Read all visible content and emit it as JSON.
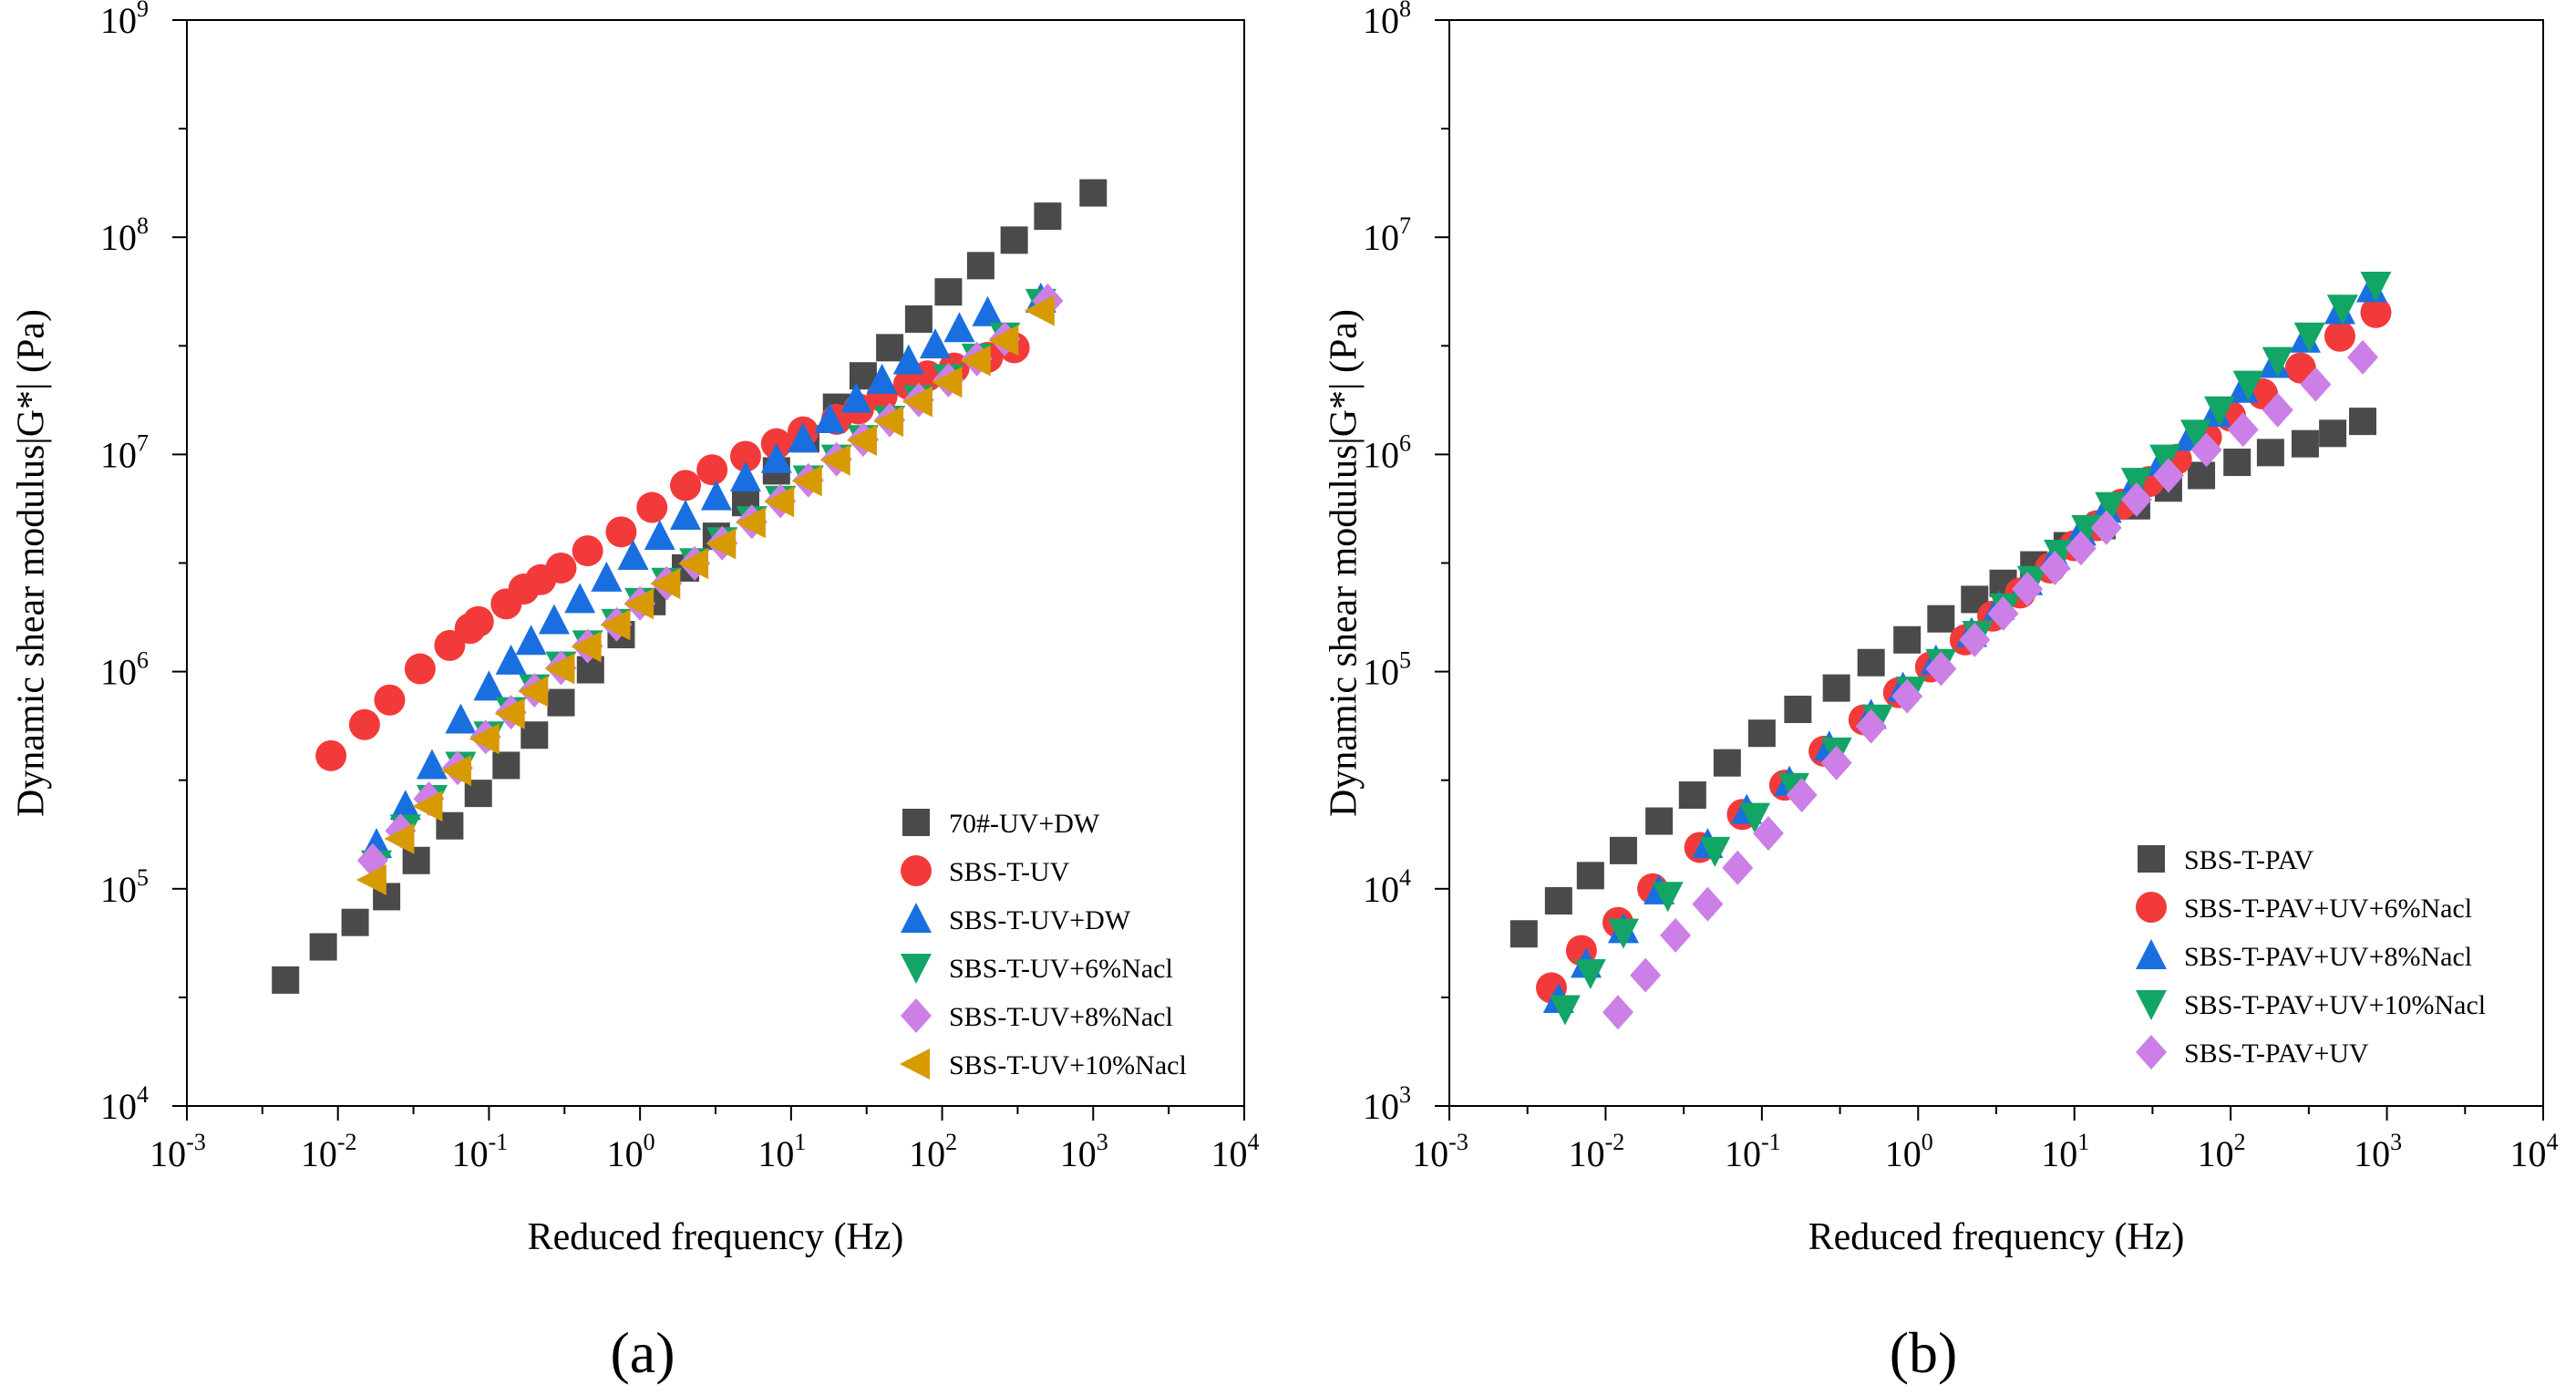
{
  "figure": {
    "colors": {
      "gray": "#4a4a4a",
      "red": "#f23a3a",
      "blue": "#1a6fe0",
      "green": "#12a566",
      "violet": "#cc7fe6",
      "gold": "#d79a00"
    }
  },
  "chart_data": [
    {
      "panel_label": "(a)",
      "type": "scatter",
      "xlabel": "Reduced frequency (Hz)",
      "ylabel": "Dynamic shear modulus|G*| (Pa)",
      "xscale": "log",
      "yscale": "log",
      "xlim": [
        0.001,
        10000
      ],
      "ylim": [
        10000,
        1000000000
      ],
      "x_ticks": [
        {
          "base": "10",
          "exp": "-3"
        },
        {
          "base": "10",
          "exp": "-2"
        },
        {
          "base": "10",
          "exp": "-1"
        },
        {
          "base": "10",
          "exp": "0"
        },
        {
          "base": "10",
          "exp": "1"
        },
        {
          "base": "10",
          "exp": "2"
        },
        {
          "base": "10",
          "exp": "3"
        },
        {
          "base": "10",
          "exp": "4"
        }
      ],
      "y_ticks": [
        {
          "base": "10",
          "exp": "4"
        },
        {
          "base": "10",
          "exp": "5"
        },
        {
          "base": "10",
          "exp": "6"
        },
        {
          "base": "10",
          "exp": "7"
        },
        {
          "base": "10",
          "exp": "8"
        },
        {
          "base": "10",
          "exp": "9"
        }
      ],
      "legend_position": "bottom-right",
      "series": [
        {
          "name": "70#-UV+DW",
          "marker": "square",
          "color": "#4a4a4a",
          "x": [
            0.0045,
            0.008,
            0.013,
            0.021,
            0.033,
            0.055,
            0.085,
            0.13,
            0.2,
            0.3,
            0.47,
            0.75,
            1.2,
            2,
            3.2,
            5,
            8,
            12.5,
            20,
            30,
            45,
            70,
            110,
            180,
            300,
            500,
            1000
          ],
          "y": [
            38000,
            54000,
            70000,
            92000,
            135000,
            195000,
            275000,
            370000,
            510000,
            720000,
            1020000,
            1480000,
            2100000,
            3000000,
            4200000,
            6000000,
            8400000,
            11800000,
            16500000,
            23000000,
            31000000,
            42000000,
            56000000,
            74000000,
            97000000,
            125000000,
            160000000
          ]
        },
        {
          "name": "SBS-T-UV",
          "marker": "circle",
          "color": "#f23a3a",
          "x": [
            0.009,
            0.015,
            0.022,
            0.035,
            0.055,
            0.075,
            0.085,
            0.13,
            0.17,
            0.22,
            0.3,
            0.45,
            0.75,
            1.2,
            2,
            3,
            5,
            8,
            12,
            20,
            28,
            40,
            60,
            80,
            120,
            200,
            300
          ],
          "y": [
            410000,
            570000,
            740000,
            1030000,
            1320000,
            1580000,
            1700000,
            2050000,
            2400000,
            2650000,
            3000000,
            3600000,
            4400000,
            5700000,
            7200000,
            8500000,
            9800000,
            11200000,
            12700000,
            14500000,
            16200000,
            18500000,
            21000000,
            23000000,
            25000000,
            28000000,
            31000000
          ]
        },
        {
          "name": "SBS-T-UV+DW",
          "marker": "triangle-up",
          "color": "#1a6fe0",
          "x": [
            0.018,
            0.028,
            0.042,
            0.065,
            0.1,
            0.14,
            0.19,
            0.27,
            0.4,
            0.6,
            0.9,
            1.35,
            2,
            3.2,
            5,
            8,
            12,
            18,
            27,
            40,
            60,
            90,
            130,
            200,
            450
          ],
          "y": [
            160000,
            240000,
            370000,
            600000,
            850000,
            1120000,
            1380000,
            1720000,
            2150000,
            2700000,
            3400000,
            4200000,
            5200000,
            6400000,
            7800000,
            9500000,
            11800000,
            14500000,
            18000000,
            22000000,
            27000000,
            32000000,
            38000000,
            45000000,
            52000000
          ]
        },
        {
          "name": "SBS-T-UV+6%Nacl",
          "marker": "triangle-down",
          "color": "#12a566",
          "x": [
            0.018,
            0.028,
            0.042,
            0.065,
            0.1,
            0.14,
            0.2,
            0.3,
            0.45,
            0.7,
            1,
            1.5,
            2.3,
            3.5,
            5.5,
            8.5,
            13,
            20,
            30,
            45,
            70,
            110,
            170,
            260,
            450
          ],
          "y": [
            130000,
            190000,
            260000,
            370000,
            510000,
            660000,
            840000,
            1070000,
            1340000,
            1680000,
            2100000,
            2600000,
            3200000,
            4000000,
            5000000,
            6200000,
            7700000,
            9600000,
            11800000,
            14500000,
            18000000,
            22500000,
            28000000,
            35000000,
            50000000
          ]
        },
        {
          "name": "SBS-T-UV+8%Nacl",
          "marker": "diamond",
          "color": "#cc7fe6",
          "x": [
            0.017,
            0.026,
            0.04,
            0.062,
            0.095,
            0.14,
            0.2,
            0.3,
            0.45,
            0.7,
            1,
            1.5,
            2.3,
            3.5,
            5.5,
            8.5,
            13,
            20,
            30,
            45,
            70,
            110,
            170,
            260,
            500
          ],
          "y": [
            135000,
            185000,
            260000,
            360000,
            500000,
            650000,
            820000,
            1040000,
            1310000,
            1650000,
            2060000,
            2550000,
            3150000,
            3900000,
            4900000,
            6100000,
            7600000,
            9500000,
            11700000,
            14400000,
            17800000,
            22000000,
            27500000,
            34000000,
            51000000
          ]
        },
        {
          "name": "SBS-T-UV+10%Nacl",
          "marker": "triangle-left",
          "color": "#d79a00",
          "x": [
            0.017,
            0.026,
            0.04,
            0.062,
            0.095,
            0.14,
            0.2,
            0.3,
            0.45,
            0.7,
            1,
            1.5,
            2.3,
            3.5,
            5.5,
            8.5,
            13,
            20,
            30,
            45,
            70,
            110,
            170,
            260,
            450
          ],
          "y": [
            110000,
            170000,
            240000,
            350000,
            490000,
            640000,
            810000,
            1030000,
            1300000,
            1640000,
            2050000,
            2540000,
            3140000,
            3880000,
            4850000,
            6050000,
            7550000,
            9400000,
            11600000,
            14200000,
            17500000,
            21500000,
            27000000,
            33500000,
            46000000
          ]
        }
      ]
    },
    {
      "panel_label": "(b)",
      "type": "scatter",
      "xlabel": "Reduced frequency (Hz)",
      "ylabel": "Dynamic shear modulus|G*| (Pa)",
      "xscale": "log",
      "yscale": "log",
      "xlim": [
        0.001,
        10000
      ],
      "ylim": [
        1000,
        100000000
      ],
      "x_ticks": [
        {
          "base": "10",
          "exp": "-3"
        },
        {
          "base": "10",
          "exp": "-2"
        },
        {
          "base": "10",
          "exp": "-1"
        },
        {
          "base": "10",
          "exp": "0"
        },
        {
          "base": "10",
          "exp": "1"
        },
        {
          "base": "10",
          "exp": "2"
        },
        {
          "base": "10",
          "exp": "3"
        },
        {
          "base": "10",
          "exp": "4"
        }
      ],
      "y_ticks": [
        {
          "base": "10",
          "exp": "3"
        },
        {
          "base": "10",
          "exp": "4"
        },
        {
          "base": "10",
          "exp": "5"
        },
        {
          "base": "10",
          "exp": "6"
        },
        {
          "base": "10",
          "exp": "7"
        },
        {
          "base": "10",
          "exp": "8"
        }
      ],
      "legend_position": "bottom-right",
      "series": [
        {
          "name": "SBS-T-PAV",
          "marker": "square",
          "color": "#4a4a4a",
          "x": [
            0.003,
            0.005,
            0.008,
            0.013,
            0.022,
            0.036,
            0.06,
            0.1,
            0.17,
            0.3,
            0.5,
            0.85,
            1.4,
            2.3,
            3.5,
            5.5,
            9,
            15,
            25,
            40,
            65,
            110,
            180,
            300,
            450,
            700
          ],
          "y": [
            6200,
            8800,
            11500,
            15000,
            20500,
            27000,
            38000,
            52000,
            67000,
            84000,
            110000,
            140000,
            175000,
            215000,
            255000,
            310000,
            380000,
            470000,
            580000,
            700000,
            800000,
            920000,
            1020000,
            1120000,
            1250000,
            1420000
          ]
        },
        {
          "name": "SBS-T-PAV+UV+6%Nacl",
          "marker": "circle",
          "color": "#f23a3a",
          "x": [
            0.0045,
            0.007,
            0.012,
            0.02,
            0.04,
            0.075,
            0.14,
            0.25,
            0.45,
            0.75,
            1.2,
            2,
            3,
            4.5,
            7,
            10,
            14,
            20,
            30,
            45,
            70,
            100,
            160,
            280,
            500,
            850
          ],
          "y": [
            3500,
            5200,
            7000,
            10000,
            15500,
            22000,
            30000,
            43000,
            60000,
            80000,
            105000,
            140000,
            180000,
            230000,
            300000,
            380000,
            470000,
            590000,
            750000,
            950000,
            1200000,
            1500000,
            1900000,
            2500000,
            3500000,
            4500000
          ]
        },
        {
          "name": "SBS-T-PAV+UV+8%Nacl",
          "marker": "triangle-up",
          "color": "#1a6fe0",
          "x": [
            0.005,
            0.0075,
            0.013,
            0.022,
            0.045,
            0.08,
            0.15,
            0.27,
            0.5,
            0.8,
            1.3,
            2.2,
            3.3,
            5,
            7.5,
            11,
            16,
            24,
            36,
            55,
            80,
            120,
            190,
            300,
            500,
            800
          ],
          "y": [
            3100,
            4500,
            6500,
            9800,
            16000,
            23000,
            31000,
            45000,
            63000,
            84000,
            112000,
            150000,
            200000,
            260000,
            340000,
            440000,
            560000,
            720000,
            920000,
            1200000,
            1550000,
            2000000,
            2600000,
            3400000,
            4600000,
            5800000
          ]
        },
        {
          "name": "SBS-T-PAV+UV+10%Nacl",
          "marker": "triangle-down",
          "color": "#12a566",
          "x": [
            0.0055,
            0.008,
            0.013,
            0.025,
            0.05,
            0.09,
            0.16,
            0.3,
            0.55,
            0.9,
            1.4,
            2.4,
            3.6,
            5.4,
            8,
            12,
            17,
            25,
            38,
            60,
            85,
            130,
            200,
            320,
            520,
            850
          ],
          "y": [
            2800,
            4100,
            6300,
            9300,
            15000,
            21500,
            29500,
            43000,
            61000,
            82000,
            110000,
            148000,
            198000,
            265000,
            350000,
            455000,
            580000,
            750000,
            960000,
            1250000,
            1600000,
            2100000,
            2700000,
            3500000,
            4700000,
            6000000
          ]
        },
        {
          "name": "SBS-T-PAV+UV",
          "marker": "diamond",
          "color": "#cc7fe6",
          "x": [
            0.012,
            0.018,
            0.028,
            0.045,
            0.07,
            0.11,
            0.18,
            0.3,
            0.5,
            0.85,
            1.4,
            2.3,
            3.5,
            5,
            7.5,
            11,
            16,
            25,
            40,
            70,
            120,
            200,
            350,
            700
          ],
          "y": [
            2700,
            4000,
            6100,
            8500,
            12500,
            18000,
            27000,
            38000,
            56000,
            77000,
            103000,
            140000,
            185000,
            240000,
            300000,
            370000,
            460000,
            620000,
            800000,
            1050000,
            1300000,
            1600000,
            2100000,
            2800000
          ]
        }
      ]
    }
  ]
}
